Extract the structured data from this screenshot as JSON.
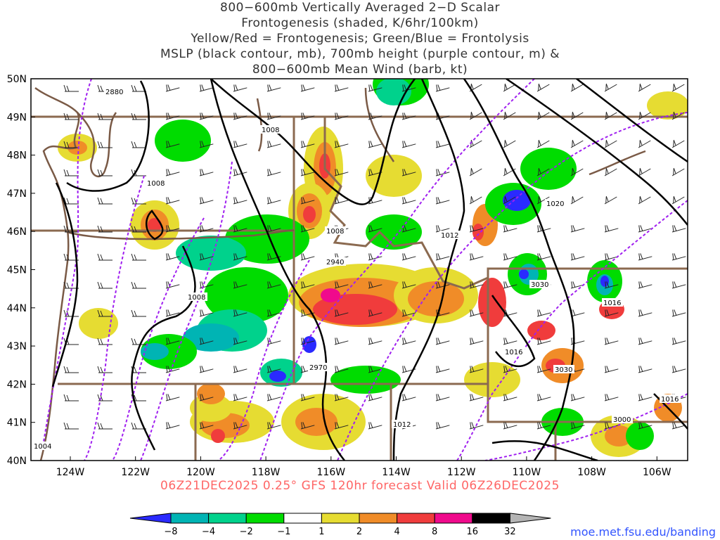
{
  "title_lines": [
    "800−600mb Vertically Averaged 2−D Scalar",
    "Frontogenesis (shaded, K/6hr/100km)",
    "Yellow/Red = Frontogenesis;  Green/Blue = Frontolysis",
    "MSLP (black contour, mb), 700mb height (purple contour, m) &",
    "800−600mb Mean Wind (barb, kt)"
  ],
  "footer": "06Z21DEC2025 0.25° GFS 120hr forecast Valid 06Z26DEC2025",
  "credit": "moe.met.fsu.edu/banding",
  "lat_labels": [
    "50N",
    "49N",
    "48N",
    "47N",
    "46N",
    "45N",
    "44N",
    "43N",
    "42N",
    "41N",
    "40N"
  ],
  "lon_labels": [
    "124W",
    "122W",
    "120W",
    "118W",
    "116W",
    "114W",
    "112W",
    "110W",
    "108W",
    "106W"
  ],
  "colorbar": {
    "ticks": [
      "−8",
      "−4",
      "−2",
      "−1",
      "1",
      "2",
      "4",
      "8",
      "16",
      "32"
    ],
    "colors": [
      "#2a2aff",
      "#00b4b4",
      "#00d28c",
      "#00dc00",
      "#ffffff",
      "#e6dc32",
      "#f08c28",
      "#f03c3c",
      "#f00a8c",
      "#000000",
      "#b4b4b4"
    ]
  },
  "mslp_labels": [
    "1008",
    "1008",
    "1008",
    "1008",
    "1004",
    "1012",
    "1012",
    "1016",
    "1016",
    "1016",
    "1020"
  ],
  "height_labels": [
    "2880",
    "2940",
    "2970",
    "3030",
    "3030",
    "3000"
  ]
}
